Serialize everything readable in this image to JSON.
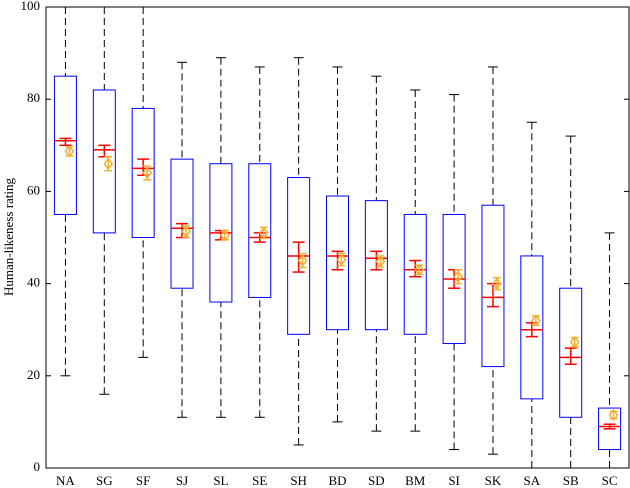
{
  "chart_data": {
    "type": "box",
    "ylabel": "Human-likeness rating",
    "categories": [
      "NA",
      "SG",
      "SF",
      "SJ",
      "SL",
      "SE",
      "SH",
      "BD",
      "SD",
      "BM",
      "SI",
      "SK",
      "SA",
      "SB",
      "SC"
    ],
    "boxes": [
      {
        "whislo": 20,
        "q1": 55,
        "med": 71,
        "q3": 85,
        "whishi": 100,
        "med_ci": [
          70,
          71.5
        ],
        "mean": 68.7,
        "mean_err": 1
      },
      {
        "whislo": 16,
        "q1": 51,
        "med": 69,
        "q3": 82,
        "whishi": 100,
        "med_ci": [
          67.5,
          70
        ],
        "mean": 66,
        "mean_err": 1.5
      },
      {
        "whislo": 24,
        "q1": 50,
        "med": 65,
        "q3": 78,
        "whishi": 100,
        "med_ci": [
          63.5,
          67
        ],
        "mean": 64,
        "mean_err": 1.5
      },
      {
        "whislo": 11,
        "q1": 39,
        "med": 52,
        "q3": 67,
        "whishi": 88,
        "med_ci": [
          50,
          53
        ],
        "mean": 51.3,
        "mean_err": 1.2
      },
      {
        "whislo": 11,
        "q1": 36,
        "med": 51,
        "q3": 66,
        "whishi": 89,
        "med_ci": [
          49.5,
          51.5
        ],
        "mean": 50.5,
        "mean_err": 1
      },
      {
        "whislo": 11,
        "q1": 37,
        "med": 50,
        "q3": 66,
        "whishi": 87,
        "med_ci": [
          49,
          51
        ],
        "mean": 51,
        "mean_err": 1.2
      },
      {
        "whislo": 5,
        "q1": 29,
        "med": 46,
        "q3": 63,
        "whishi": 89,
        "med_ci": [
          42.5,
          49
        ],
        "mean": 45,
        "mean_err": 1.5
      },
      {
        "whislo": 10,
        "q1": 30,
        "med": 46,
        "q3": 59,
        "whishi": 87,
        "med_ci": [
          43,
          47
        ],
        "mean": 45.2,
        "mean_err": 1.3
      },
      {
        "whislo": 8,
        "q1": 30,
        "med": 45.5,
        "q3": 58,
        "whishi": 85,
        "med_ci": [
          43,
          47
        ],
        "mean": 44.8,
        "mean_err": 1.2
      },
      {
        "whislo": 8,
        "q1": 29,
        "med": 43,
        "q3": 55,
        "whishi": 82,
        "med_ci": [
          41.5,
          45
        ],
        "mean": 43,
        "mean_err": 1
      },
      {
        "whislo": 4,
        "q1": 27,
        "med": 41,
        "q3": 55,
        "whishi": 81,
        "med_ci": [
          39,
          43
        ],
        "mean": 41.5,
        "mean_err": 1.5
      },
      {
        "whislo": 3,
        "q1": 22,
        "med": 37,
        "q3": 57,
        "whishi": 87,
        "med_ci": [
          35,
          40
        ],
        "mean": 40,
        "mean_err": 1.3
      },
      {
        "whislo": 0,
        "q1": 15,
        "med": 30,
        "q3": 46,
        "whishi": 75,
        "med_ci": [
          28.5,
          31.5
        ],
        "mean": 32,
        "mean_err": 1
      },
      {
        "whislo": 0,
        "q1": 11,
        "med": 24,
        "q3": 39,
        "whishi": 72,
        "med_ci": [
          22.5,
          26
        ],
        "mean": 27.3,
        "mean_err": 1
      },
      {
        "whislo": 0,
        "q1": 4,
        "med": 9,
        "q3": 13,
        "whishi": 51,
        "med_ci": [
          8.5,
          9.5
        ],
        "mean": 11.5,
        "mean_err": 0.8
      }
    ],
    "box_color": "#0000ff",
    "median_color": "#ff0000",
    "mean_color": "#f0b030",
    "whisker_color": "#000000",
    "ylim": [
      0,
      100
    ],
    "yticks": [
      0,
      20,
      40,
      60,
      80,
      100
    ]
  }
}
